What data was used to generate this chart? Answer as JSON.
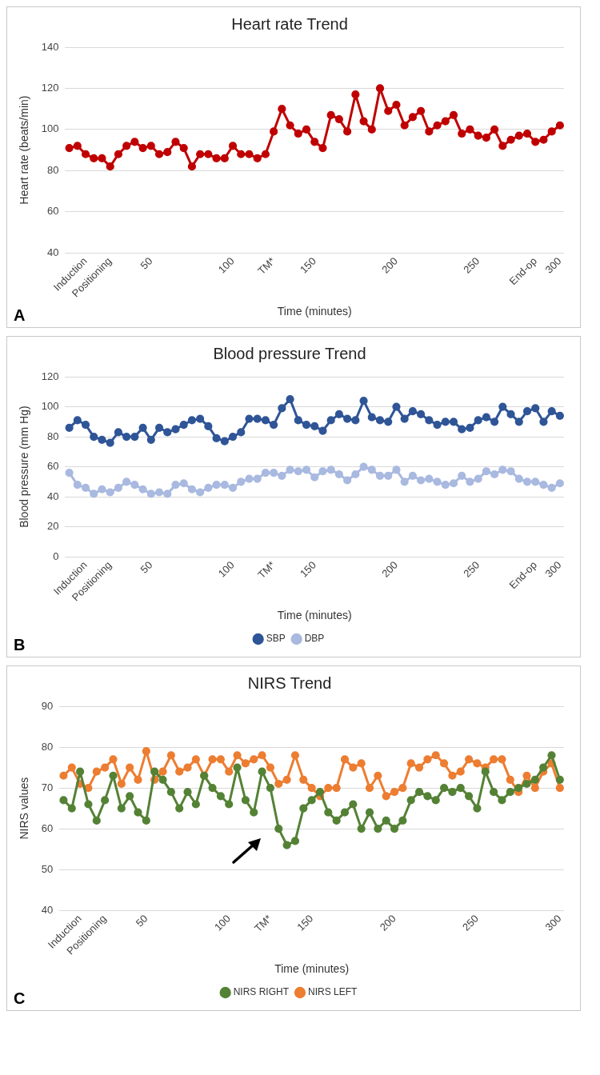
{
  "chart_data": [
    {
      "type": "line",
      "title": "Heart rate Trend",
      "xlabel": "Time (minutes)",
      "ylabel": "Heart rate (beats/min)",
      "annotations": [
        "A"
      ],
      "categories": [
        null,
        null,
        "Induction",
        null,
        null,
        "Positioning",
        null,
        null,
        null,
        null,
        "50",
        null,
        null,
        null,
        null,
        null,
        null,
        null,
        null,
        null,
        "100",
        null,
        null,
        null,
        null,
        "TM*",
        null,
        null,
        null,
        null,
        "150",
        null,
        null,
        null,
        null,
        null,
        null,
        null,
        null,
        null,
        "200",
        null,
        null,
        null,
        null,
        null,
        null,
        null,
        null,
        null,
        "250",
        null,
        null,
        null,
        null,
        null,
        null,
        "End-op",
        null,
        null,
        "300"
      ],
      "series": [
        {
          "color": "#c00000",
          "values": [
            91,
            92,
            88,
            86,
            86,
            82,
            88,
            92,
            94,
            91,
            92,
            88,
            89,
            94,
            91,
            82,
            88,
            88,
            86,
            86,
            92,
            88,
            88,
            86,
            88,
            99,
            110,
            102,
            98,
            100,
            94,
            91,
            107,
            105,
            99,
            117,
            104,
            100,
            120,
            109,
            112,
            102,
            106,
            109,
            99,
            102,
            104,
            107,
            98,
            100,
            97,
            96,
            100,
            92,
            95,
            97,
            98,
            94,
            95,
            99,
            102
          ]
        }
      ],
      "ylim": [
        40,
        140
      ],
      "yticks": [
        40,
        60,
        80,
        100,
        120,
        140
      ],
      "grid": "y",
      "marker": "circle"
    },
    {
      "type": "line",
      "title": "Blood pressure Trend",
      "xlabel": "Time (minutes)",
      "ylabel": "Blood pressure (mm Hg)",
      "annotations": [
        "B"
      ],
      "categories": [
        null,
        null,
        "Induction",
        null,
        null,
        "Positioning",
        null,
        null,
        null,
        null,
        "50",
        null,
        null,
        null,
        null,
        null,
        null,
        null,
        null,
        null,
        "100",
        null,
        null,
        null,
        null,
        "TM*",
        null,
        null,
        null,
        null,
        "150",
        null,
        null,
        null,
        null,
        null,
        null,
        null,
        null,
        null,
        "200",
        null,
        null,
        null,
        null,
        null,
        null,
        null,
        null,
        null,
        "250",
        null,
        null,
        null,
        null,
        null,
        null,
        "End-op",
        null,
        null,
        "300"
      ],
      "series": [
        {
          "name": "SBP",
          "color": "#2f5597",
          "values": [
            86,
            91,
            88,
            80,
            78,
            76,
            83,
            80,
            80,
            86,
            78,
            86,
            83,
            85,
            88,
            91,
            92,
            87,
            79,
            77,
            80,
            83,
            92,
            92,
            91,
            88,
            99,
            105,
            91,
            88,
            87,
            84,
            91,
            95,
            92,
            91,
            104,
            93,
            91,
            90,
            100,
            92,
            97,
            95,
            91,
            88,
            90,
            90,
            85,
            86,
            91,
            93,
            90,
            100,
            95,
            90,
            97,
            99,
            90,
            97,
            94
          ]
        },
        {
          "name": "DBP",
          "color": "#a9b9e0",
          "values": [
            56,
            48,
            46,
            42,
            45,
            43,
            46,
            50,
            48,
            45,
            42,
            43,
            42,
            48,
            49,
            45,
            43,
            46,
            48,
            48,
            46,
            50,
            52,
            52,
            56,
            56,
            54,
            58,
            57,
            58,
            53,
            57,
            58,
            55,
            51,
            55,
            60,
            58,
            54,
            54,
            58,
            50,
            54,
            51,
            52,
            50,
            48,
            49,
            54,
            50,
            52,
            57,
            55,
            58,
            57,
            52,
            50,
            50,
            48,
            46,
            49
          ]
        }
      ],
      "ylim": [
        0,
        120
      ],
      "yticks": [
        0,
        20,
        40,
        60,
        80,
        100,
        120
      ],
      "grid": "y",
      "legend": "bottom",
      "marker": "circle"
    },
    {
      "type": "line",
      "title": "NIRS Trend",
      "xlabel": "Time (minutes)",
      "ylabel": "NIRS values",
      "annotations": [
        "C"
      ],
      "categories": [
        null,
        null,
        "Induction",
        null,
        null,
        "Positioning",
        null,
        null,
        null,
        null,
        "50",
        null,
        null,
        null,
        null,
        null,
        null,
        null,
        null,
        null,
        "100",
        null,
        null,
        null,
        null,
        "TM*",
        null,
        null,
        null,
        null,
        "150",
        null,
        null,
        null,
        null,
        null,
        null,
        null,
        null,
        null,
        "200",
        null,
        null,
        null,
        null,
        null,
        null,
        null,
        null,
        null,
        "250",
        null,
        null,
        null,
        null,
        null,
        null,
        null,
        null,
        null,
        "300"
      ],
      "series": [
        {
          "name": "NIRS RIGHT",
          "color": "#548235",
          "values": [
            67,
            65,
            74,
            66,
            62,
            67,
            73,
            65,
            68,
            64,
            62,
            74,
            72,
            69,
            65,
            69,
            66,
            73,
            70,
            68,
            66,
            75,
            67,
            64,
            74,
            70,
            60,
            56,
            57,
            65,
            67,
            69,
            64,
            62,
            64,
            66,
            60,
            64,
            60,
            62,
            60,
            62,
            67,
            69,
            68,
            67,
            70,
            69,
            70,
            68,
            65,
            74,
            69,
            67,
            69,
            70,
            71,
            72,
            75,
            78,
            72
          ]
        },
        {
          "name": "NIRS LEFT",
          "color": "#ed7d31",
          "values": [
            73,
            75,
            71,
            70,
            74,
            75,
            77,
            71,
            75,
            72,
            79,
            72,
            74,
            78,
            74,
            75,
            77,
            73,
            77,
            77,
            74,
            78,
            76,
            77,
            78,
            75,
            71,
            72,
            78,
            72,
            70,
            68,
            70,
            70,
            77,
            75,
            76,
            70,
            73,
            68,
            69,
            70,
            76,
            75,
            77,
            78,
            76,
            73,
            74,
            77,
            76,
            75,
            77,
            77,
            72,
            69,
            73,
            70,
            74,
            76,
            70
          ]
        }
      ],
      "ylim": [
        40,
        90
      ],
      "yticks": [
        40,
        50,
        60,
        70,
        80,
        90
      ],
      "grid": "y",
      "legend": "bottom",
      "marker": "circle"
    }
  ]
}
